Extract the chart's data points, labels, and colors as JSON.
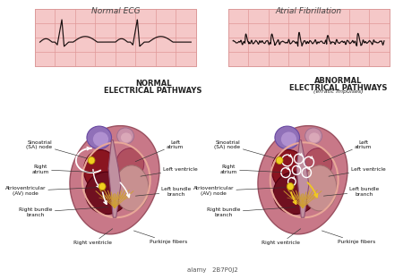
{
  "title_left": "Normal ECG",
  "title_right": "Atrial Fibrillation",
  "heart_title_left1": "NORMAL",
  "heart_title_left2": "ELECTRICAL PATHWAYS",
  "heart_title_right1": "ABNORMAL",
  "heart_title_right2": "ELECTRICAL PATHWAYS",
  "heart_title_right3": "(erratic impulses)",
  "bg_color": "#ffffff",
  "ecg_bg": "#f5c8c8",
  "ecg_grid_major": "#e09898",
  "ecg_grid_minor": "#eec0c0",
  "ecg_line_color": "#1a1010",
  "heart_outer": "#c87888",
  "heart_outer_edge": "#9a5060",
  "heart_purple": "#8868a8",
  "heart_pink_top": "#c8909a",
  "heart_ra_color": "#8a1520",
  "heart_rv_color": "#701020",
  "heart_la_color": "#c07888",
  "heart_lv_color": "#d8a8a0",
  "heart_sep_color": "#7a3838",
  "fiber_color": "#d0a030",
  "node_color": "#f0d020",
  "node_edge": "#b09000",
  "pathway_white": "#ffffff",
  "pathway_yellow": "#f0c820",
  "loop_white": "#ffffff",
  "label_fs": 4.2,
  "title_fs": 6.5,
  "heart_label_fs": 6.0,
  "watermark_color": "#555555"
}
